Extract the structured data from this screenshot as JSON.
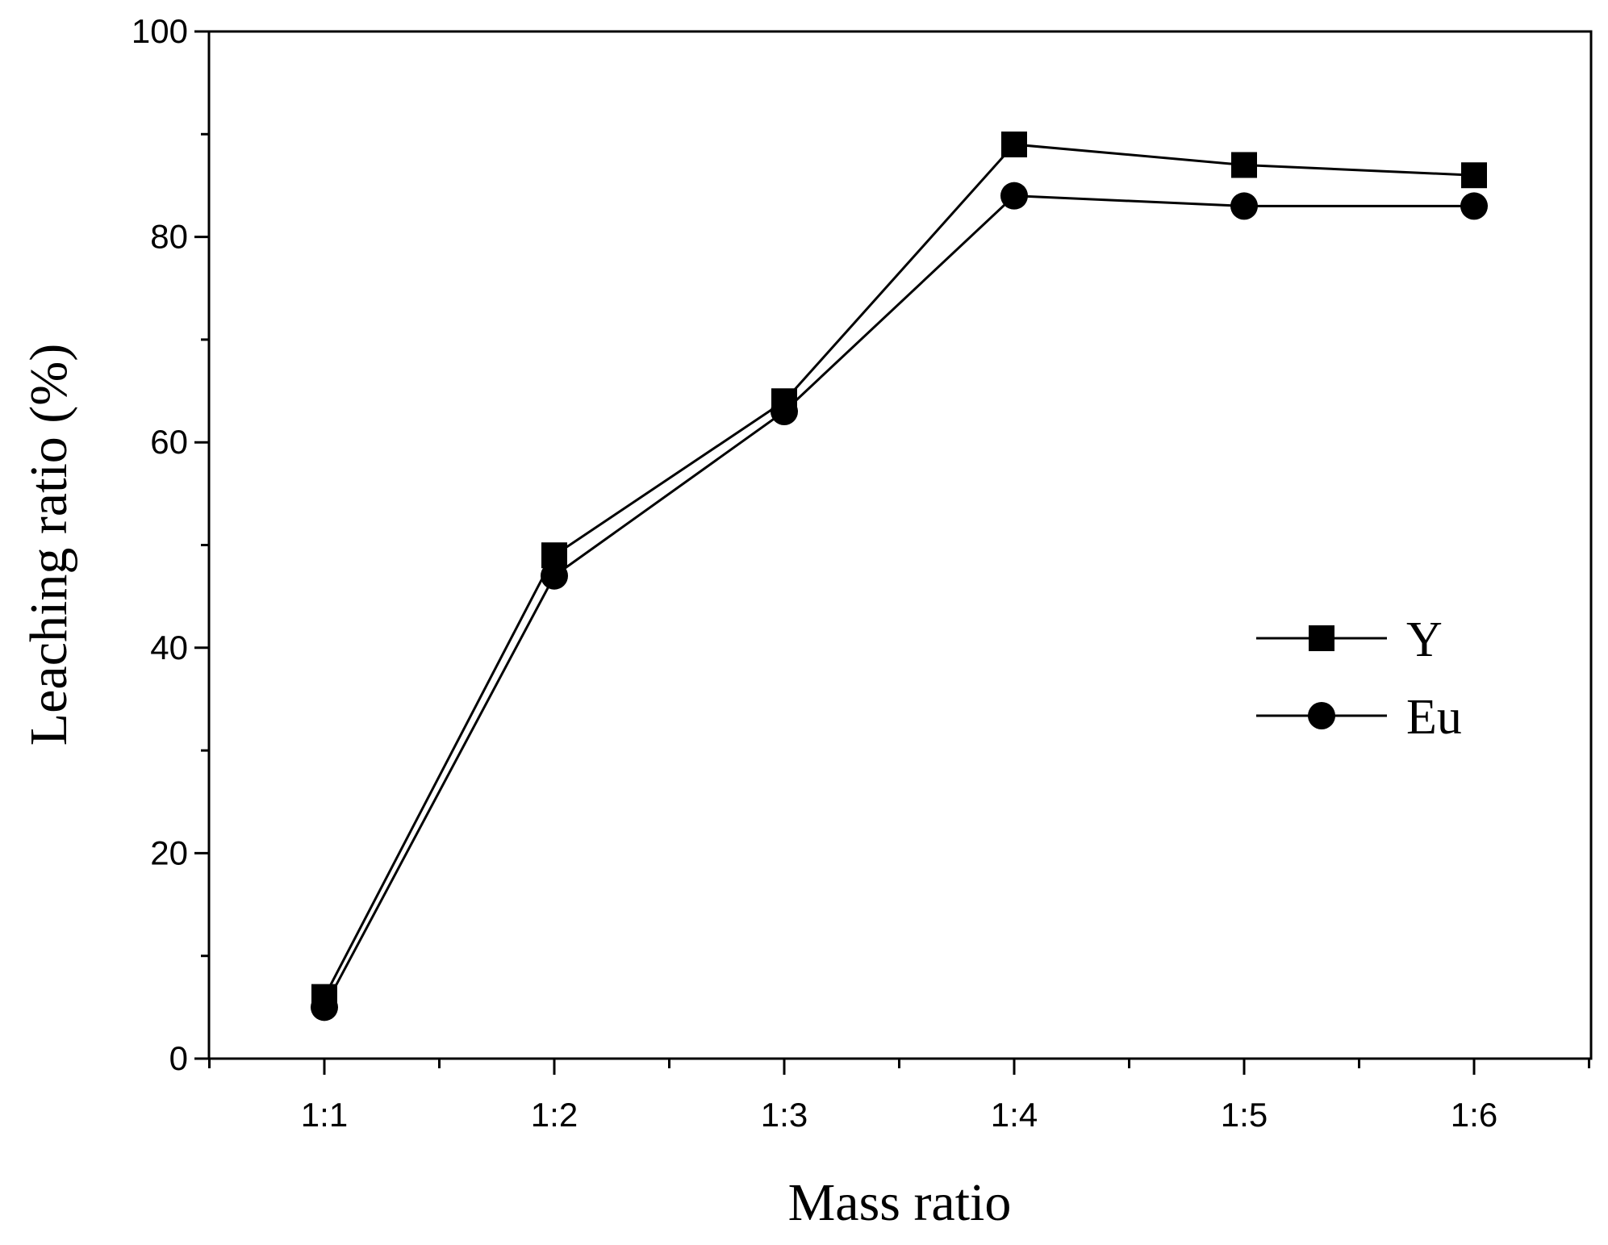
{
  "colors": {
    "background": "#ffffff",
    "ink": "#000000"
  },
  "chart_data": {
    "type": "line",
    "title": "",
    "xlabel": "Mass ratio",
    "ylabel": "Leaching ratio (%)",
    "categories": [
      "1:1",
      "1:2",
      "1:3",
      "1:4",
      "1:5",
      "1:6"
    ],
    "ylim": [
      0,
      100
    ],
    "yticks": [
      0,
      20,
      40,
      60,
      80,
      100
    ],
    "y_minor_step": 10,
    "grid": false,
    "legend_position": "right-center",
    "series": [
      {
        "name": "Y",
        "marker": "square",
        "values": [
          6,
          49,
          64,
          89,
          87,
          86
        ]
      },
      {
        "name": "Eu",
        "marker": "circle",
        "values": [
          5,
          47,
          63,
          84,
          83,
          83
        ]
      }
    ]
  }
}
